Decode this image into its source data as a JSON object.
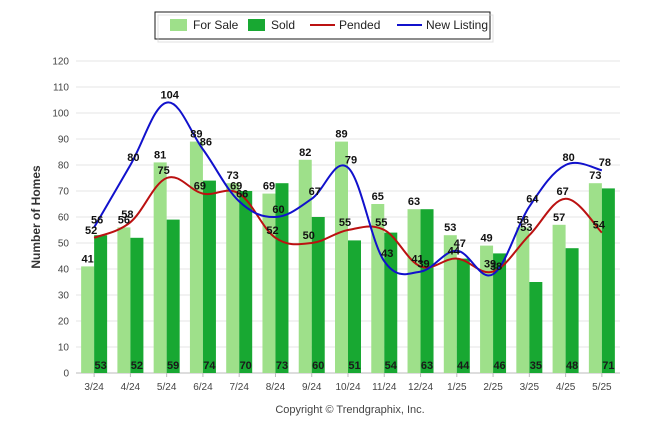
{
  "chart_data": {
    "type": "bar",
    "categories": [
      "3/24",
      "4/24",
      "5/24",
      "6/24",
      "7/24",
      "8/24",
      "9/24",
      "10/24",
      "11/24",
      "12/24",
      "1/25",
      "2/25",
      "3/25",
      "4/25",
      "5/25"
    ],
    "series": [
      {
        "name": "For Sale",
        "kind": "bar",
        "color": "#9ee08a",
        "values": [
          41,
          56,
          81,
          89,
          73,
          69,
          82,
          89,
          65,
          63,
          53,
          49,
          56,
          57,
          73
        ]
      },
      {
        "name": "Sold",
        "kind": "bar",
        "color": "#18a832",
        "values": [
          53,
          52,
          59,
          74,
          70,
          73,
          60,
          51,
          54,
          63,
          44,
          46,
          35,
          48,
          71
        ]
      },
      {
        "name": "Pended",
        "kind": "line",
        "color": "#bb1111",
        "values": [
          52,
          58,
          75,
          69,
          69,
          52,
          50,
          55,
          55,
          41,
          44,
          39,
          53,
          67,
          54
        ]
      },
      {
        "name": "New Listing",
        "kind": "line",
        "color": "#1111cc",
        "values": [
          56,
          80,
          104,
          86,
          66,
          60,
          67,
          79,
          43,
          39,
          47,
          38,
          64,
          80,
          78
        ]
      }
    ],
    "ylabel": "Number of Homes",
    "xlabel": "",
    "ylim": [
      0,
      120
    ],
    "yticks": [
      0,
      10,
      20,
      30,
      40,
      50,
      60,
      70,
      80,
      90,
      100,
      110,
      120
    ],
    "grid": true,
    "legend_position": "top-center"
  },
  "footer": "Copyright © Trendgraphix, Inc."
}
